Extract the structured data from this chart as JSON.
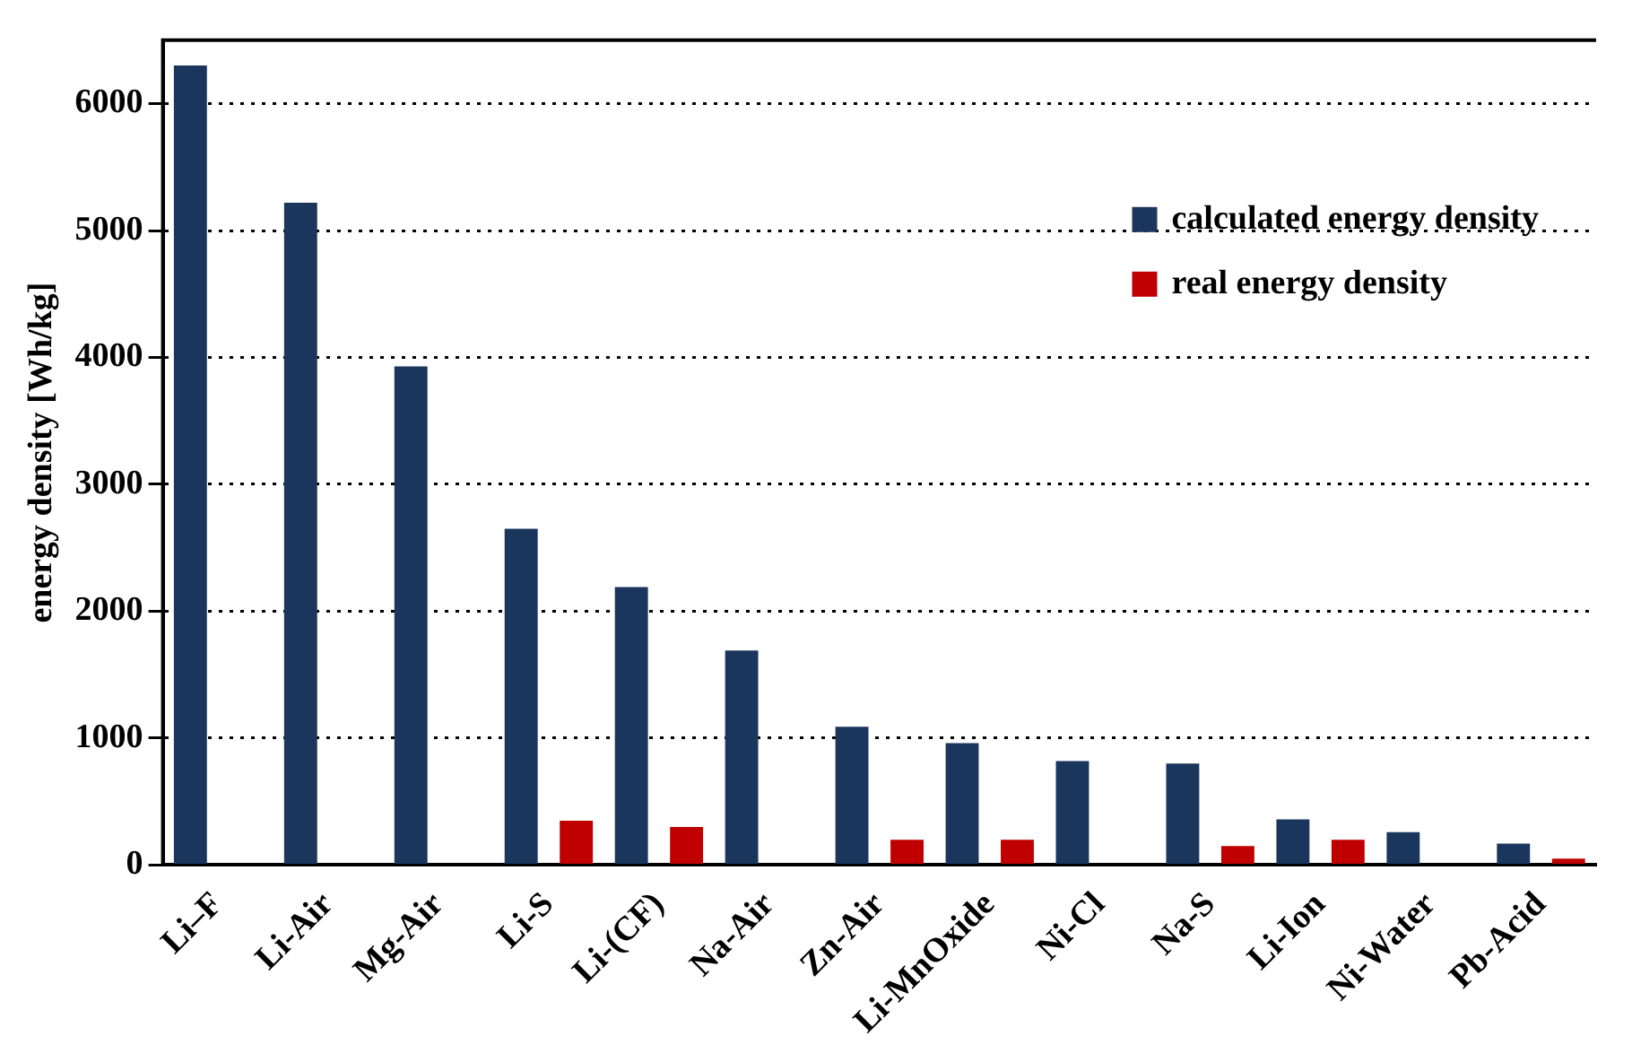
{
  "chart_data": {
    "type": "bar",
    "ylabel": "energy density [Wh/kg]",
    "categories": [
      "Li–F",
      "Li-Air",
      "Mg-Air",
      "Li-S",
      "Li-(CF)",
      "Na-Air",
      "Zn-Air",
      "Li-MnOxide",
      "Ni-Cl",
      "Na-S",
      "Li-Ion",
      "Ni-Water",
      "Pb-Acid"
    ],
    "series": [
      {
        "name": "calculated energy density",
        "color": "#1b365d",
        "values": [
          6300,
          5220,
          3930,
          2650,
          2190,
          1690,
          1090,
          960,
          820,
          800,
          360,
          260,
          170
        ]
      },
      {
        "name": "real energy density",
        "color": "#c00000",
        "values": [
          null,
          null,
          null,
          350,
          300,
          null,
          200,
          200,
          null,
          150,
          200,
          null,
          50
        ]
      }
    ],
    "ylim": [
      0,
      6500
    ],
    "yticks": [
      0,
      1000,
      2000,
      3000,
      4000,
      5000,
      6000
    ],
    "grid": "y",
    "legend": "top right"
  }
}
